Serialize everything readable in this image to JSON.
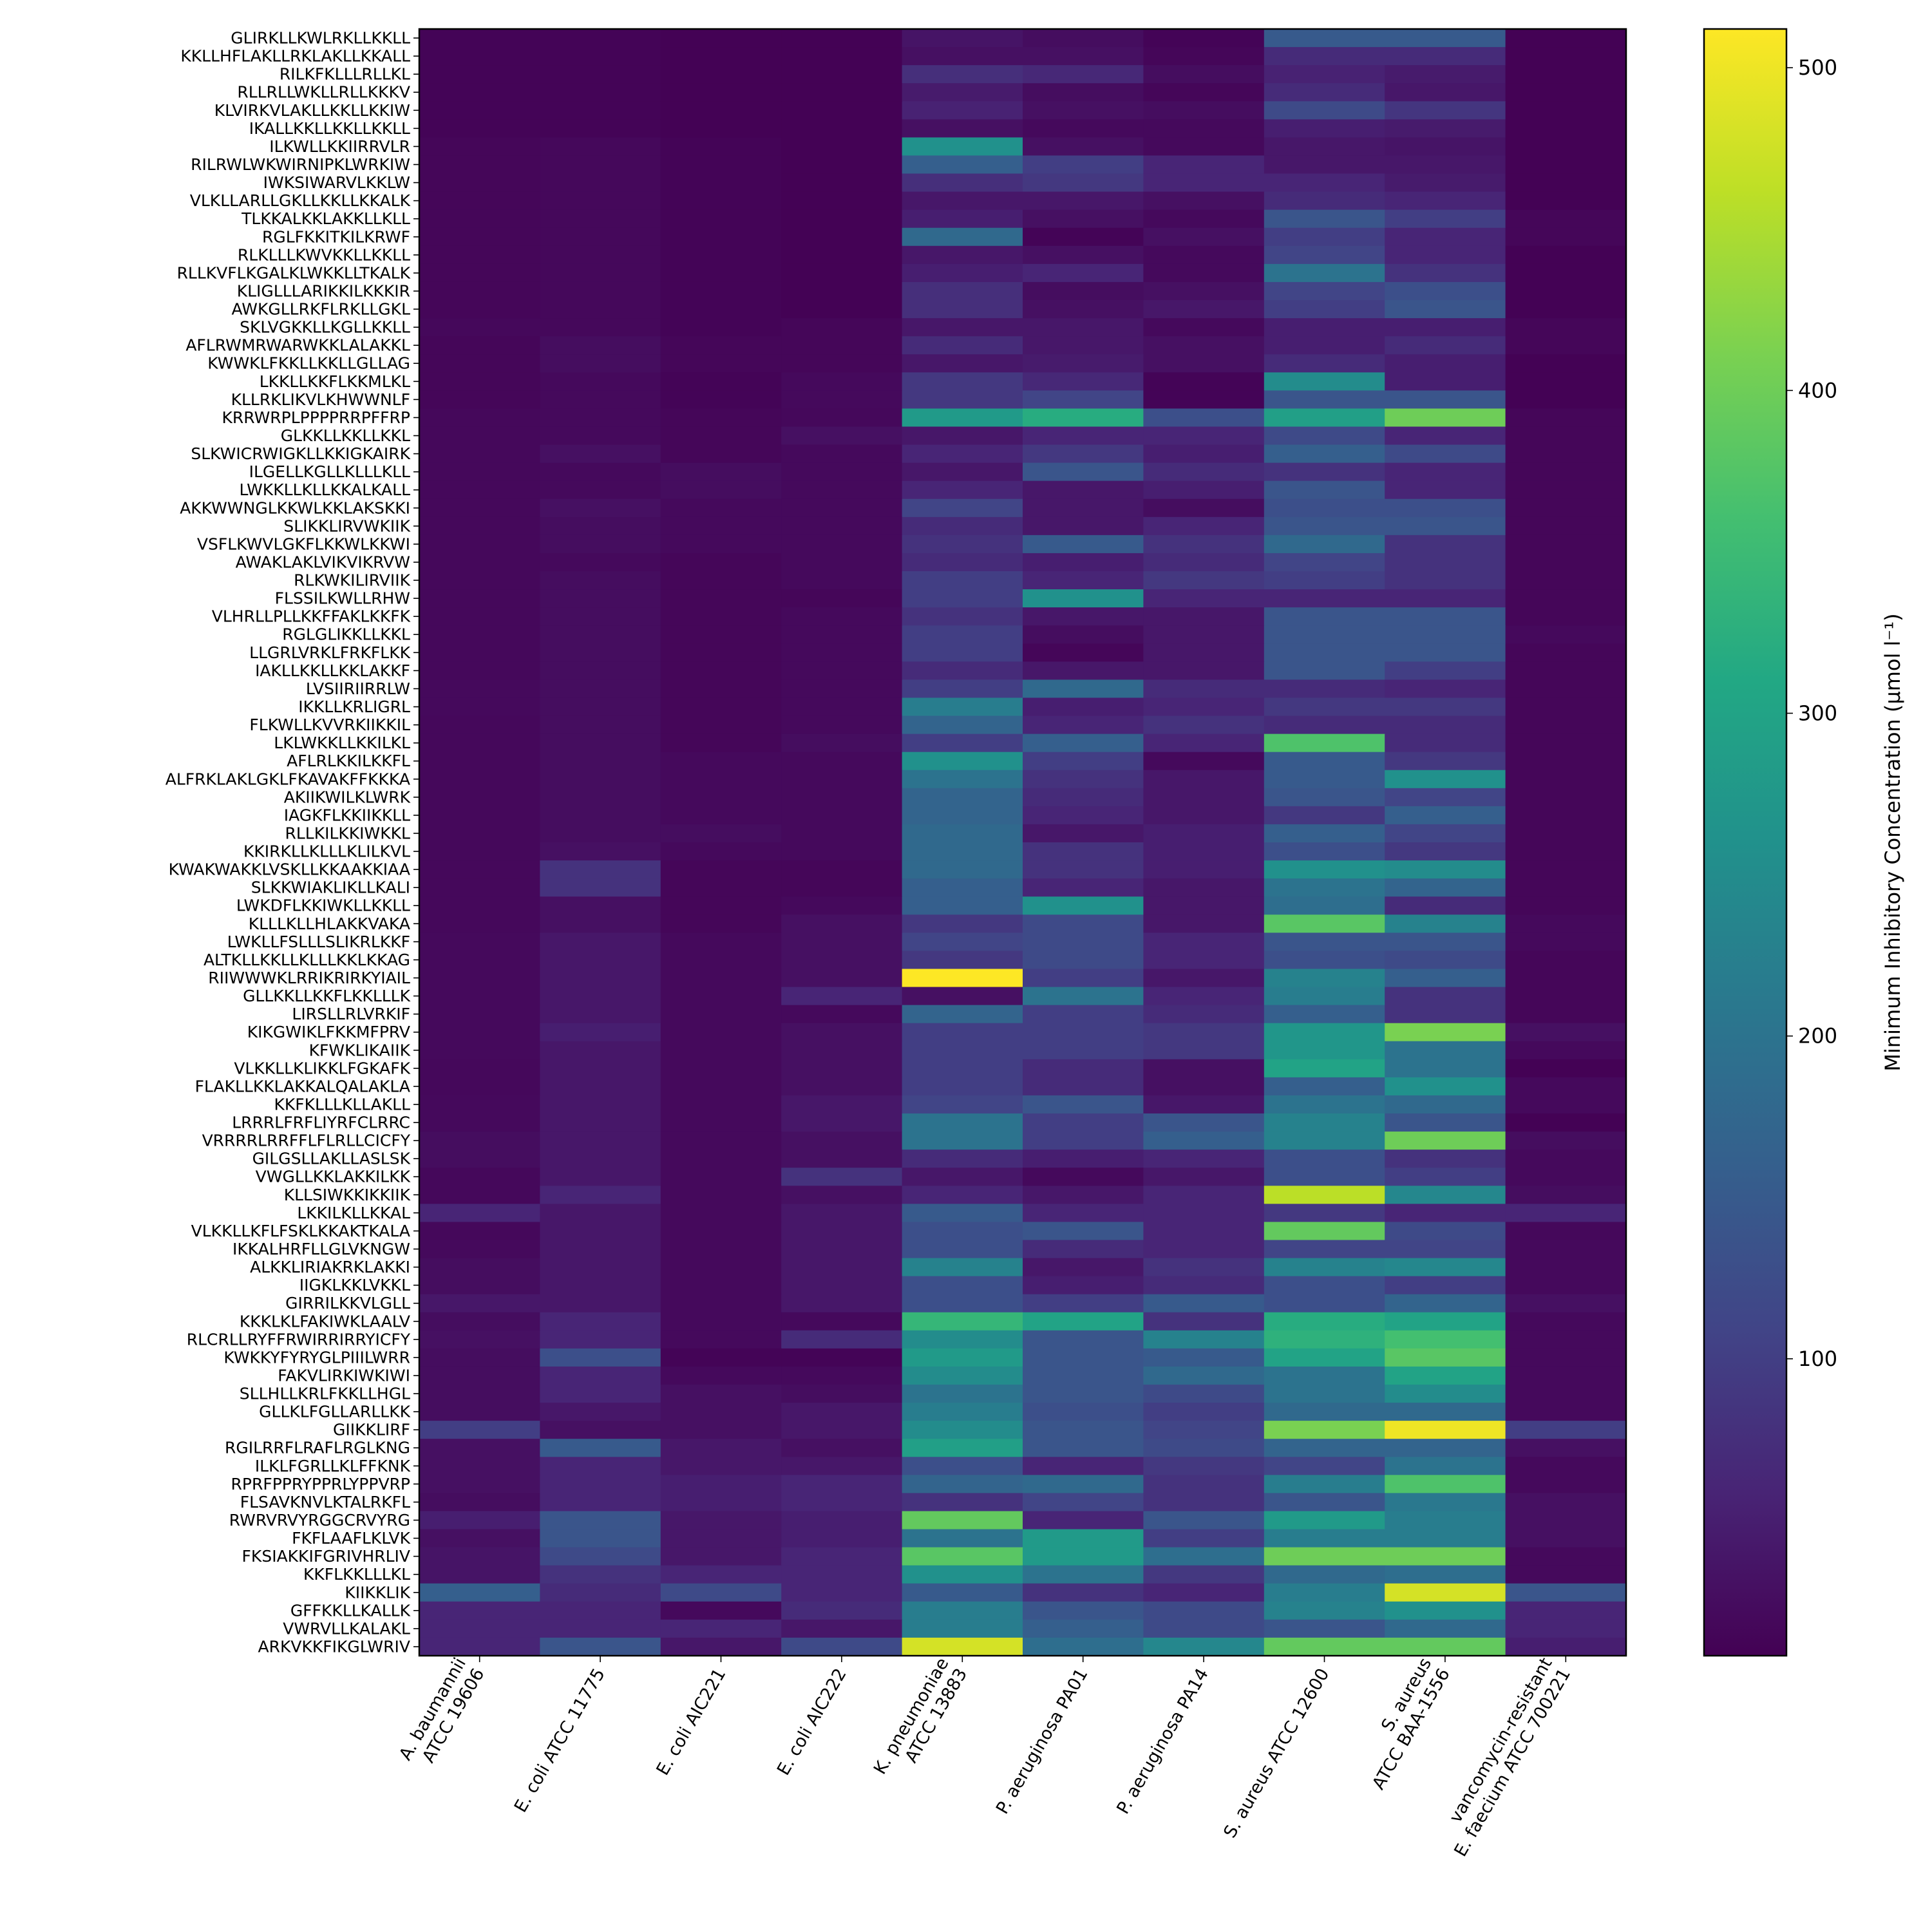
{
  "chart_data": {
    "type": "heatmap",
    "title": "",
    "xlabel": "",
    "ylabel": "",
    "colormap": "viridis",
    "colorbar": {
      "label": "Minimum Inhibitory Concentration (μmol l⁻¹)",
      "range": [
        8,
        512
      ],
      "ticks": [
        100,
        200,
        300,
        400,
        500
      ]
    },
    "columns": [
      "A. baumannii\nATCC 19606",
      "E. coli ATCC 11775",
      "E. coli AIC221",
      "E. coli AIC222",
      "K. pneumoniae\nATCC 13883",
      "P. aeruginosa PA01",
      "P. aeruginosa PA14",
      "S. aureus ATCC 12600",
      "S. aureus\nATCC BAA-1556",
      "vancomycin-resistant\nE. faecium ATCC 700221"
    ],
    "rows": [
      "GLIRKLLKWLRKLLKKLL",
      "KKLLHFLAKLLRKLAKLLKKALL",
      "RILKFKLLLRLLKL",
      "RLLRLLWKLLRLLKKKV",
      "KLVIRKVLAKLLKKLLKKIW",
      "IKALLKKLLKKLLKKLL",
      "ILKWLLKKIIRRVLR",
      "RILRWLWKWIRNIPKLWRKIW",
      "IWKSIWARVLKKLW",
      "VLKLLARLLGKLLKKLLKKALK",
      "TLKKALKKLAKKLLKLL",
      "RGLFKKITKILKRWF",
      "RLKLLLKWVKKLLKKLL",
      "RLLKVFLKGALKLWKKLLTKALK",
      "KLIGLLLARIKKILKKKIR",
      "AWKGLLRKFLRKLLGKL",
      "SKLVGKKLLKGLLKKLL",
      "AFLRWMRWARWKKLALAKKL",
      "KWWKLFKKLLKKLLGLLAG",
      "LKKLLKKFLKKMLKL",
      "KLLRKLIKVLKHWWNLF",
      "KRRWRPLPPPPRRPFFRP",
      "GLKKLLKKLLKKL",
      "SLKWICRWIGKLLKKIGKAIRK",
      "ILGELLKGLLKLLLKLL",
      "LWKKLLKLLKKALKALL",
      "AKKWWNGLKKWLKKLAKSKKI",
      "SLIKKLIRVWKIIK",
      "VSFLKWVLGKFLKKWLKKWI",
      "AWAKLAKLVIKVIKRVW",
      "RLKWKILIRVIIK",
      "FLSSILKWLLRHW",
      "VLHRLLPLLKKFFAKLKKFK",
      "RGLGLIKKLLKKL",
      "LLGRLVRKLFRKFLKK",
      "IAKLLKKLLKKLAKKF",
      "LVSIIRIIRRLW",
      "IKKLLKRLIGRL",
      "FLKWLLKVVRKIIKKIL",
      "LKLWKKLLKKILKL",
      "AFLRLKKILKKFL",
      "ALFRKLAKLGKLFKAVAKFFKKKA",
      "AKIIKWILKLWRK",
      "IAGKFLKKIIKKLL",
      "RLLKILKKIWKKL",
      "KKIRKLLKLLLKLILKVL",
      "KWAKWAKKLVSKLLKKAAKKIAA",
      "SLKKWIAKLIKLLKALI",
      "LWKDFLKKIWKLLKKLL",
      "KLLLKLLHLAKKVAKA",
      "LWKLLFSLLLSLIKRLKKF",
      "ALTKLLKKLLKLLLKKLKKAG",
      "RIIWWWKLRRIKRIRKYIAIL",
      "GLLKKLLKKFLKKLLLK",
      "LIRSLLRLVRKIF",
      "KIKGWIKLFKKMFPRV",
      "KFWKLIKAIIK",
      "VLKKLLKLIKKLFGKAFK",
      "FLAKLLKKLAKKALQALAKLA",
      "KKFKLLLKLLAKLL",
      "LRRRLFRFLIYRFCLRRC",
      "VRRRRLRRFFLFLRLLCICFY",
      "GILGSLLAKLLASLSK",
      "VWGLLKKLAKKILKK",
      "KLLSIWKKIKKIIK",
      "LKKILKLLKKAL",
      "VLKKLLKFLFSKLKKAKTKALA",
      "IKKALHRFLLGLVKNGW",
      "ALKKLIRIAKRKLAKKI",
      "IIGKLKKLVKKL",
      "GIRRILKKVLGLL",
      "KKKLKLFAKIWKLAALV",
      "RLCRLLRYFFRWIRRIRRYICFY",
      "KWKKYFYRYGLPIIILWRR",
      "FAKVLIRKIWKIWI",
      "SLLHLLKRLFKKLLHGL",
      "GLLKLFGLLARLLKK",
      "GIIKKLIRF",
      "RGILRRFLRAFLRGLKNG",
      "ILKLFGRLLKLFFKNK",
      "RPRFPPRYPPRLYPPVRP",
      "FLSAVKNVLKTALRKFL",
      "RWRVRVYRGGCRVYRG",
      "FKFLAAFLKLVK",
      "FKSIAKKIFGRIVHRLIV",
      "KKFLKKLLLKL",
      "KIIKKLIK",
      "GFFKKLLKALLK",
      "VWRVLLKALAKL",
      "ARKVKKFIKGLWRIV"
    ],
    "values": [
      [
        12,
        12,
        10,
        10,
        35,
        25,
        12,
        150,
        150,
        10
      ],
      [
        12,
        12,
        10,
        10,
        30,
        30,
        15,
        70,
        70,
        10
      ],
      [
        12,
        12,
        10,
        10,
        75,
        65,
        25,
        55,
        45,
        10
      ],
      [
        12,
        12,
        10,
        10,
        45,
        25,
        15,
        70,
        40,
        10
      ],
      [
        12,
        12,
        10,
        10,
        55,
        30,
        25,
        120,
        85,
        10
      ],
      [
        12,
        12,
        10,
        10,
        30,
        20,
        20,
        50,
        45,
        10
      ],
      [
        15,
        18,
        12,
        10,
        260,
        30,
        20,
        40,
        35,
        10
      ],
      [
        15,
        18,
        12,
        10,
        160,
        100,
        60,
        40,
        40,
        10
      ],
      [
        15,
        18,
        12,
        10,
        75,
        90,
        60,
        60,
        45,
        10
      ],
      [
        15,
        18,
        12,
        10,
        40,
        40,
        30,
        70,
        60,
        10
      ],
      [
        15,
        18,
        12,
        10,
        50,
        30,
        20,
        140,
        100,
        15
      ],
      [
        15,
        18,
        12,
        10,
        180,
        12,
        30,
        100,
        60,
        15
      ],
      [
        15,
        18,
        12,
        10,
        40,
        30,
        20,
        110,
        60,
        10
      ],
      [
        15,
        18,
        12,
        10,
        50,
        60,
        20,
        200,
        80,
        10
      ],
      [
        15,
        18,
        12,
        10,
        75,
        25,
        30,
        110,
        130,
        10
      ],
      [
        15,
        18,
        12,
        10,
        75,
        30,
        40,
        100,
        140,
        10
      ],
      [
        18,
        18,
        12,
        15,
        40,
        40,
        20,
        50,
        50,
        15
      ],
      [
        15,
        25,
        15,
        15,
        70,
        40,
        30,
        50,
        70,
        15
      ],
      [
        15,
        25,
        15,
        15,
        40,
        45,
        30,
        70,
        50,
        10
      ],
      [
        15,
        20,
        12,
        20,
        90,
        65,
        12,
        250,
        50,
        10
      ],
      [
        15,
        20,
        12,
        20,
        90,
        110,
        12,
        140,
        140,
        10
      ],
      [
        18,
        20,
        15,
        18,
        280,
        320,
        130,
        290,
        400,
        15
      ],
      [
        18,
        20,
        15,
        30,
        40,
        60,
        60,
        120,
        60,
        15
      ],
      [
        18,
        30,
        15,
        20,
        60,
        90,
        50,
        160,
        120,
        15
      ],
      [
        18,
        20,
        25,
        20,
        40,
        140,
        70,
        80,
        60,
        15
      ],
      [
        18,
        20,
        25,
        20,
        60,
        40,
        50,
        140,
        60,
        15
      ],
      [
        18,
        30,
        20,
        20,
        110,
        40,
        25,
        130,
        130,
        15
      ],
      [
        18,
        25,
        20,
        20,
        70,
        40,
        60,
        140,
        140,
        15
      ],
      [
        18,
        25,
        20,
        20,
        80,
        150,
        80,
        180,
        80,
        15
      ],
      [
        18,
        20,
        15,
        20,
        70,
        50,
        70,
        110,
        80,
        15
      ],
      [
        18,
        25,
        15,
        20,
        100,
        60,
        90,
        100,
        80,
        15
      ],
      [
        18,
        25,
        15,
        15,
        100,
        260,
        60,
        60,
        60,
        15
      ],
      [
        18,
        25,
        15,
        20,
        80,
        40,
        40,
        140,
        140,
        15
      ],
      [
        18,
        25,
        15,
        20,
        100,
        25,
        40,
        140,
        140,
        20
      ],
      [
        18,
        25,
        15,
        20,
        100,
        15,
        40,
        140,
        140,
        15
      ],
      [
        18,
        25,
        15,
        20,
        70,
        40,
        40,
        140,
        100,
        15
      ],
      [
        20,
        25,
        15,
        20,
        100,
        180,
        70,
        70,
        60,
        15
      ],
      [
        20,
        25,
        15,
        20,
        220,
        50,
        60,
        90,
        90,
        15
      ],
      [
        18,
        25,
        15,
        20,
        170,
        60,
        80,
        70,
        70,
        15
      ],
      [
        18,
        25,
        15,
        25,
        100,
        160,
        60,
        370,
        70,
        15
      ],
      [
        18,
        25,
        20,
        20,
        260,
        100,
        20,
        150,
        90,
        15
      ],
      [
        18,
        25,
        20,
        20,
        200,
        80,
        40,
        150,
        260,
        15
      ],
      [
        18,
        25,
        20,
        20,
        170,
        70,
        40,
        140,
        110,
        15
      ],
      [
        18,
        25,
        20,
        20,
        170,
        60,
        40,
        90,
        160,
        15
      ],
      [
        18,
        25,
        25,
        20,
        180,
        40,
        50,
        160,
        110,
        15
      ],
      [
        18,
        30,
        20,
        20,
        180,
        80,
        50,
        130,
        90,
        15
      ],
      [
        18,
        80,
        15,
        15,
        180,
        80,
        50,
        260,
        250,
        15
      ],
      [
        18,
        80,
        15,
        15,
        160,
        60,
        40,
        200,
        170,
        15
      ],
      [
        18,
        30,
        15,
        20,
        160,
        260,
        40,
        190,
        70,
        15
      ],
      [
        18,
        30,
        15,
        30,
        90,
        120,
        40,
        380,
        230,
        20
      ],
      [
        20,
        40,
        20,
        30,
        110,
        120,
        60,
        140,
        140,
        20
      ],
      [
        20,
        40,
        20,
        30,
        90,
        120,
        60,
        130,
        120,
        15
      ],
      [
        20,
        40,
        20,
        30,
        512,
        100,
        40,
        230,
        160,
        15
      ],
      [
        20,
        40,
        20,
        60,
        30,
        200,
        60,
        220,
        80,
        15
      ],
      [
        20,
        40,
        20,
        20,
        170,
        100,
        70,
        160,
        80,
        15
      ],
      [
        20,
        50,
        20,
        30,
        100,
        100,
        90,
        270,
        410,
        30
      ],
      [
        20,
        40,
        20,
        30,
        100,
        100,
        90,
        270,
        200,
        20
      ],
      [
        18,
        40,
        20,
        30,
        100,
        70,
        30,
        300,
        200,
        10
      ],
      [
        18,
        40,
        20,
        30,
        100,
        70,
        30,
        160,
        260,
        20
      ],
      [
        20,
        40,
        20,
        40,
        110,
        140,
        40,
        200,
        180,
        20
      ],
      [
        20,
        40,
        20,
        40,
        200,
        100,
        140,
        230,
        140,
        10
      ],
      [
        25,
        40,
        20,
        30,
        200,
        100,
        160,
        230,
        400,
        25
      ],
      [
        25,
        40,
        20,
        30,
        70,
        50,
        60,
        130,
        80,
        20
      ],
      [
        18,
        40,
        20,
        80,
        40,
        20,
        40,
        130,
        100,
        20
      ],
      [
        18,
        60,
        20,
        30,
        60,
        40,
        60,
        460,
        240,
        25
      ],
      [
        60,
        40,
        20,
        40,
        150,
        60,
        60,
        90,
        60,
        60
      ],
      [
        18,
        40,
        20,
        40,
        130,
        140,
        60,
        390,
        120,
        18
      ],
      [
        20,
        40,
        20,
        40,
        130,
        70,
        60,
        110,
        110,
        20
      ],
      [
        25,
        40,
        20,
        40,
        230,
        40,
        80,
        230,
        240,
        20
      ],
      [
        25,
        40,
        20,
        40,
        130,
        50,
        70,
        130,
        100,
        20
      ],
      [
        40,
        40,
        20,
        40,
        130,
        100,
        150,
        130,
        170,
        30
      ],
      [
        25,
        60,
        20,
        20,
        340,
        300,
        80,
        320,
        300,
        20
      ],
      [
        30,
        60,
        20,
        70,
        250,
        140,
        230,
        330,
        360,
        20
      ],
      [
        25,
        130,
        12,
        12,
        280,
        140,
        150,
        300,
        380,
        20
      ],
      [
        25,
        60,
        20,
        20,
        250,
        140,
        180,
        200,
        300,
        20
      ],
      [
        25,
        60,
        30,
        25,
        200,
        140,
        120,
        200,
        250,
        20
      ],
      [
        25,
        40,
        30,
        40,
        220,
        130,
        100,
        180,
        180,
        20
      ],
      [
        100,
        30,
        30,
        40,
        250,
        140,
        110,
        410,
        500,
        100
      ],
      [
        30,
        150,
        40,
        30,
        290,
        140,
        120,
        170,
        170,
        30
      ],
      [
        30,
        60,
        40,
        40,
        130,
        60,
        90,
        110,
        200,
        20
      ],
      [
        30,
        60,
        50,
        60,
        170,
        180,
        80,
        220,
        370,
        20
      ],
      [
        25,
        60,
        50,
        60,
        80,
        110,
        80,
        140,
        210,
        30
      ],
      [
        50,
        140,
        40,
        50,
        390,
        60,
        140,
        280,
        220,
        30
      ],
      [
        30,
        140,
        40,
        50,
        200,
        280,
        100,
        220,
        220,
        30
      ],
      [
        35,
        120,
        40,
        60,
        380,
        280,
        190,
        400,
        400,
        20
      ],
      [
        35,
        80,
        60,
        60,
        260,
        200,
        90,
        180,
        190,
        20
      ],
      [
        160,
        70,
        120,
        60,
        150,
        80,
        60,
        220,
        480,
        140
      ],
      [
        60,
        60,
        20,
        70,
        220,
        140,
        120,
        230,
        260,
        60
      ],
      [
        60,
        60,
        60,
        40,
        220,
        160,
        120,
        140,
        180,
        60
      ],
      [
        60,
        140,
        40,
        120,
        480,
        190,
        240,
        390,
        390,
        50
      ]
    ]
  }
}
